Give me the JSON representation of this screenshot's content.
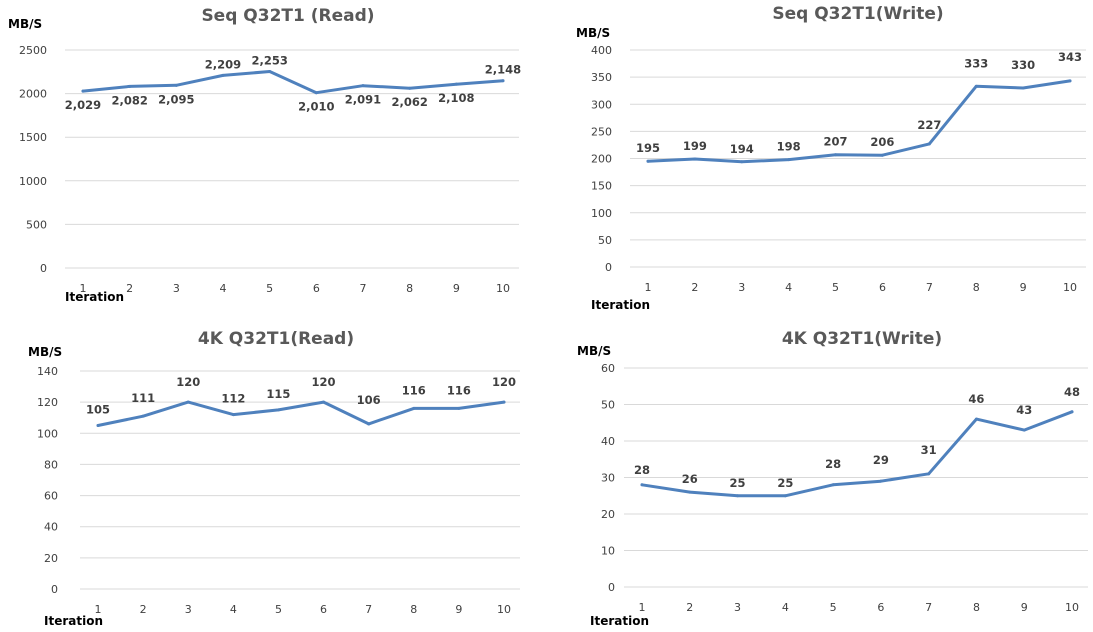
{
  "chart_data": [
    {
      "type": "line",
      "title": "Seq Q32T1 (Read)",
      "ylabel": "MB/S",
      "xlabel": "Iteration",
      "categories": [
        "1",
        "2",
        "3",
        "4",
        "5",
        "6",
        "7",
        "8",
        "9",
        "10"
      ],
      "series": [
        {
          "values": [
            2029,
            2082,
            2095,
            2209,
            2253,
            2010,
            2091,
            2062,
            2108,
            2148
          ]
        }
      ],
      "data_labels": [
        "2,029",
        "2,082",
        "2,095",
        "2,209",
        "2,253",
        "2,010",
        "2,091",
        "2,062",
        "2,108",
        "2,148"
      ],
      "yticks": [
        "0",
        "500",
        "1000",
        "1500",
        "2000",
        "2500"
      ],
      "ylim": [
        0,
        2500
      ],
      "grid": true,
      "color": "#4f81bd"
    },
    {
      "type": "line",
      "title": "Seq Q32T1(Write)",
      "ylabel": "MB/S",
      "xlabel": "Iteration",
      "categories": [
        "1",
        "2",
        "3",
        "4",
        "5",
        "6",
        "7",
        "8",
        "9",
        "10"
      ],
      "series": [
        {
          "values": [
            195,
            199,
            194,
            198,
            207,
            206,
            227,
            333,
            330,
            343
          ]
        }
      ],
      "data_labels": [
        "195",
        "199",
        "194",
        "198",
        "207",
        "206",
        "227",
        "333",
        "330",
        "343"
      ],
      "yticks": [
        "0",
        "50",
        "100",
        "150",
        "200",
        "250",
        "300",
        "350",
        "400"
      ],
      "ylim": [
        0,
        400
      ],
      "grid": true,
      "color": "#4f81bd"
    },
    {
      "type": "line",
      "title": "4K Q32T1(Read)",
      "ylabel": "MB/S",
      "xlabel": "Iteration",
      "categories": [
        "1",
        "2",
        "3",
        "4",
        "5",
        "6",
        "7",
        "8",
        "9",
        "10"
      ],
      "series": [
        {
          "values": [
            105,
            111,
            120,
            112,
            115,
            120,
            106,
            116,
            116,
            120
          ]
        }
      ],
      "data_labels": [
        "105",
        "111",
        "120",
        "112",
        "115",
        "120",
        "106",
        "116",
        "116",
        "120"
      ],
      "yticks": [
        "0",
        "20",
        "40",
        "60",
        "80",
        "100",
        "120",
        "140"
      ],
      "ylim": [
        0,
        140
      ],
      "grid": true,
      "color": "#4f81bd"
    },
    {
      "type": "line",
      "title": "4K Q32T1(Write)",
      "ylabel": "MB/S",
      "xlabel": "Iteration",
      "categories": [
        "1",
        "2",
        "3",
        "4",
        "5",
        "6",
        "7",
        "8",
        "9",
        "10"
      ],
      "series": [
        {
          "values": [
            28,
            26,
            25,
            25,
            28,
            29,
            31,
            46,
            43,
            48
          ]
        }
      ],
      "data_labels": [
        "28",
        "26",
        "25",
        "25",
        "28",
        "29",
        "31",
        "46",
        "43",
        "48"
      ],
      "yticks": [
        "0",
        "10",
        "20",
        "30",
        "40",
        "50",
        "60"
      ],
      "ylim": [
        0,
        60
      ],
      "grid": true,
      "color": "#4f81bd"
    }
  ]
}
